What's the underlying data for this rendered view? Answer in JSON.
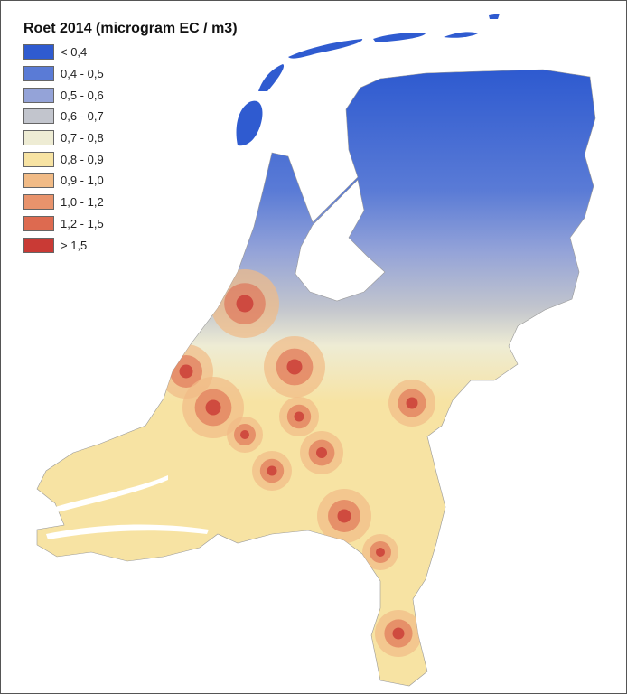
{
  "title": "Roet 2014 (microgram EC / m3)",
  "legend": [
    {
      "label": "< 0,4",
      "color": "#2f5bd0"
    },
    {
      "label": "0,4 - 0,5",
      "color": "#5a7bd6"
    },
    {
      "label": "0,5 - 0,6",
      "color": "#94a3d8"
    },
    {
      "label": "0,6 - 0,7",
      "color": "#c2c5cd"
    },
    {
      "label": "0,7 - 0,8",
      "color": "#eeecd4"
    },
    {
      "label": "0,8 - 0,9",
      "color": "#f7e3a3"
    },
    {
      "label": "0,9 - 1,0",
      "color": "#f1bb86"
    },
    {
      "label": "1,0 - 1,2",
      "color": "#e8936c"
    },
    {
      "label": "1,2 - 1,5",
      "color": "#dd6a50"
    },
    {
      "label": "> 1,5",
      "color": "#c93a35"
    }
  ]
}
